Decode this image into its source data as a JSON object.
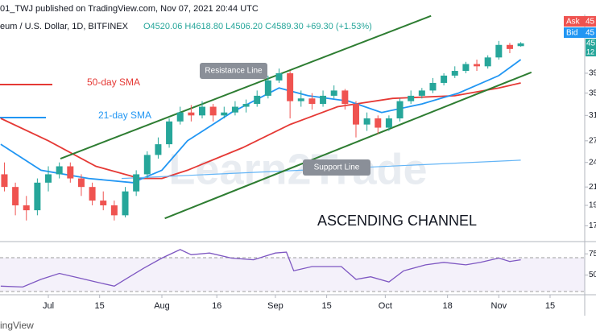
{
  "header": {
    "publisher": "01_TWJ published on TradingView.com, Nov 07, 2021 20:44 UTC",
    "symbol": "eum / U.S. Dollar, 1D, BITFINEX",
    "ohlc": "O4520.06 H4618.80 L4506.20 C4589.30 +69.30 (+1.53%)"
  },
  "price_box": {
    "ask": "Ask",
    "ask_price": "45",
    "bid": "Bid",
    "bid_price": "45",
    "last": "45",
    "countdown": "12"
  },
  "watermark": "Learn2Trade",
  "footer": "ingView",
  "chart_data": [
    {
      "type": "candlestick",
      "log_scale": true,
      "grid": false,
      "up_color": "#26a69a",
      "down_color": "#ef5350",
      "xlim": [
        168.8,
        328.9
      ],
      "xticks": [
        {
          "value": 182,
          "label": "Jul"
        },
        {
          "value": 196,
          "label": "15"
        },
        {
          "value": 213,
          "label": "Aug"
        },
        {
          "value": 228,
          "label": "16"
        },
        {
          "value": 244,
          "label": "Sep"
        },
        {
          "value": 258,
          "label": "15"
        },
        {
          "value": 274,
          "label": "Oct"
        },
        {
          "value": 291,
          "label": "18"
        },
        {
          "value": 305,
          "label": "Nov"
        },
        {
          "value": 319,
          "label": "15"
        }
      ],
      "ylim": [
        15.6,
        58.1
      ],
      "yticks": [
        39,
        35,
        31,
        27,
        24,
        21,
        19,
        17
      ],
      "x": [
        170,
        173,
        176,
        179,
        182,
        185,
        188,
        191,
        194,
        197,
        200,
        203,
        206,
        209,
        212,
        215,
        218,
        221,
        224,
        227,
        230,
        233,
        236,
        239,
        242,
        245,
        248,
        251,
        254,
        257,
        260,
        263,
        266,
        269,
        272,
        275,
        278,
        281,
        284,
        287,
        290,
        293,
        296,
        299,
        302,
        305,
        308,
        311
      ],
      "open": [
        22.5,
        21.0,
        19.0,
        18.5,
        21.5,
        22.5,
        23.5,
        22.0,
        21.0,
        19.5,
        19.0,
        18.0,
        20.5,
        22.5,
        25.0,
        26.5,
        30.0,
        31.5,
        31.0,
        32.5,
        31.0,
        31.5,
        32.5,
        33.0,
        34.5,
        37.5,
        39.0,
        33.5,
        34.0,
        33.0,
        34.5,
        35.5,
        33.0,
        29.5,
        30.5,
        29.0,
        30.5,
        33.5,
        34.5,
        35.5,
        37.0,
        38.5,
        39.5,
        41.0,
        40.5,
        42.5,
        45.5,
        45.2
      ],
      "high": [
        24.0,
        21.5,
        20.0,
        22.0,
        23.5,
        24.0,
        24.0,
        22.5,
        21.5,
        20.5,
        19.5,
        21.0,
        23.0,
        25.5,
        27.5,
        30.5,
        32.5,
        32.8,
        33.5,
        33.0,
        32.5,
        33.5,
        33.8,
        35.5,
        38.5,
        40.0,
        39.5,
        35.5,
        35.0,
        35.5,
        36.5,
        35.8,
        33.5,
        31.5,
        31.0,
        31.0,
        34.0,
        35.5,
        36.0,
        38.0,
        39.0,
        40.5,
        41.5,
        42.0,
        43.0,
        46.5,
        46.0,
        46.19
      ],
      "low": [
        20.5,
        18.0,
        17.5,
        18.0,
        20.5,
        22.0,
        21.5,
        20.0,
        19.0,
        18.5,
        17.5,
        17.8,
        20.0,
        22.0,
        24.5,
        26.0,
        29.5,
        30.0,
        30.5,
        30.0,
        30.5,
        31.0,
        31.5,
        32.5,
        34.0,
        37.0,
        30.5,
        32.5,
        32.0,
        32.5,
        34.0,
        32.0,
        27.5,
        28.5,
        28.0,
        28.5,
        30.0,
        33.0,
        34.0,
        35.0,
        36.5,
        38.0,
        39.0,
        39.5,
        40.0,
        42.0,
        43.5,
        45.06
      ],
      "close": [
        21.0,
        19.0,
        18.5,
        21.5,
        22.5,
        23.5,
        22.0,
        21.0,
        19.5,
        19.0,
        18.0,
        20.5,
        22.5,
        25.0,
        26.5,
        30.0,
        31.5,
        31.0,
        32.5,
        31.0,
        31.5,
        32.5,
        33.0,
        34.5,
        37.5,
        39.0,
        33.5,
        34.0,
        33.0,
        34.5,
        35.5,
        33.0,
        29.5,
        30.5,
        29.0,
        30.5,
        33.5,
        34.5,
        35.5,
        37.0,
        38.5,
        39.5,
        41.0,
        40.5,
        42.5,
        45.5,
        44.5,
        45.89
      ],
      "series": [
        {
          "name": "50-day SMA",
          "color": "#e53935",
          "x": [
            169,
            182,
            195,
            207,
            213,
            220,
            235,
            248,
            261,
            276,
            293,
            305,
            311
          ],
          "values": [
            30.5,
            27.0,
            23.5,
            22.0,
            22.0,
            23.0,
            26.0,
            29.5,
            32.5,
            34.0,
            34.5,
            36.0,
            37.0
          ]
        },
        {
          "name": "21-day SMA",
          "color": "#2196f3",
          "x": [
            169,
            180,
            193,
            205,
            213,
            220,
            232,
            245,
            253,
            264,
            273,
            284,
            294,
            305,
            311
          ],
          "values": [
            26.5,
            23.0,
            22.0,
            21.5,
            23.0,
            27.0,
            31.5,
            36.0,
            34.5,
            33.5,
            31.5,
            33.0,
            35.0,
            38.5,
            42.0
          ]
        },
        {
          "color": "#64b5f6",
          "x": [
            202,
            311
          ],
          "values": [
            22.0,
            24.3
          ]
        }
      ],
      "trendlines": [
        {
          "name": "Resistance Line",
          "color": "#2e7d32",
          "x": [
            185.3,
            286.5
          ],
          "values": [
            24.5,
            53.3
          ]
        },
        {
          "name": "Support Line",
          "color": "#2e7d32",
          "x": [
            213.8,
            313.9
          ],
          "values": [
            17.7,
            39.2
          ]
        }
      ],
      "annotation": "ASCENDING CHANNEL"
    },
    {
      "type": "line",
      "color": "#7e57c2",
      "ylim": [
        26.9,
        89.4
      ],
      "yticks": [
        75,
        50
      ],
      "x": [
        169,
        175,
        180,
        185,
        190,
        195,
        200,
        203,
        208,
        213,
        218,
        221,
        226,
        232,
        238,
        244,
        247,
        249,
        254,
        262,
        266,
        270,
        275,
        279,
        285,
        290,
        296,
        300,
        305,
        308,
        311
      ],
      "values": [
        37,
        36,
        45,
        52,
        47,
        42,
        37,
        45,
        58,
        70,
        80,
        74,
        76,
        70,
        68,
        76,
        77,
        55,
        60,
        60,
        45,
        48,
        42,
        55,
        62,
        65,
        62,
        65,
        70,
        66,
        68
      ]
    }
  ]
}
